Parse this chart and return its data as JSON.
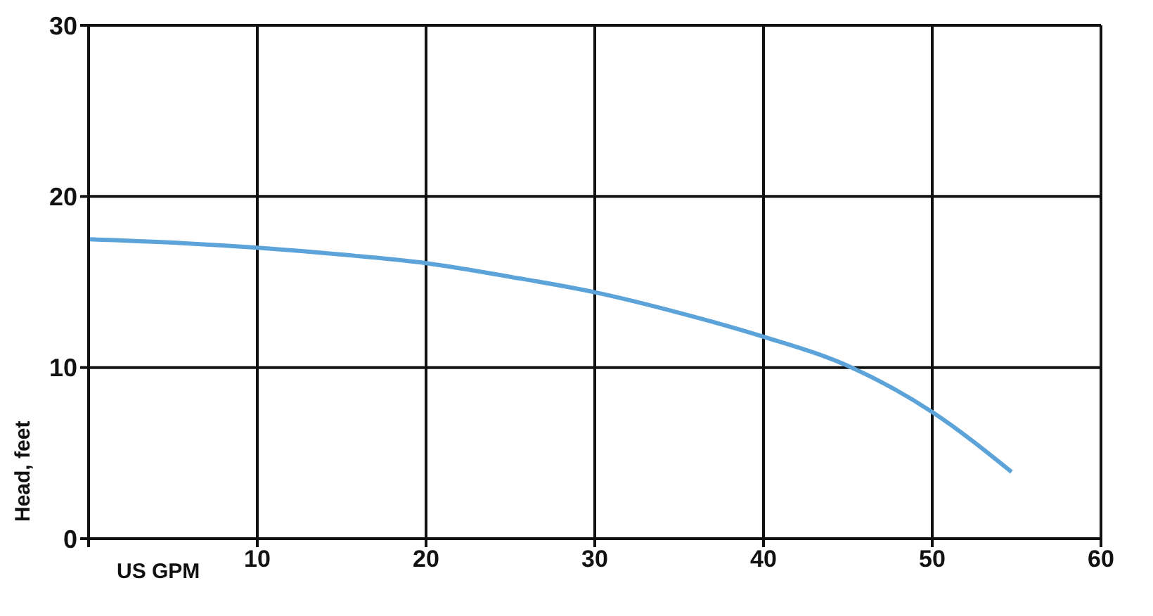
{
  "chart_data": {
    "type": "line",
    "xlabel": "US GPM",
    "ylabel": "Head, feet",
    "x": [
      0,
      5,
      10,
      15,
      20,
      25,
      30,
      35,
      40,
      45,
      50,
      54.7
    ],
    "series": [
      {
        "color": "#5ba3d9",
        "values": [
          17.5,
          17.3,
          17.0,
          16.6,
          16.1,
          15.3,
          14.4,
          13.2,
          11.8,
          10.1,
          7.4,
          3.9
        ]
      }
    ],
    "xlim": [
      0,
      60
    ],
    "xticks": [
      {
        "value": 0,
        "label": null
      },
      10,
      20,
      30,
      40,
      50,
      60
    ],
    "ylim": [
      0,
      30
    ],
    "yticks": [
      0,
      10,
      20,
      30
    ],
    "grid": true,
    "marker": "none",
    "line_style": "solid"
  }
}
